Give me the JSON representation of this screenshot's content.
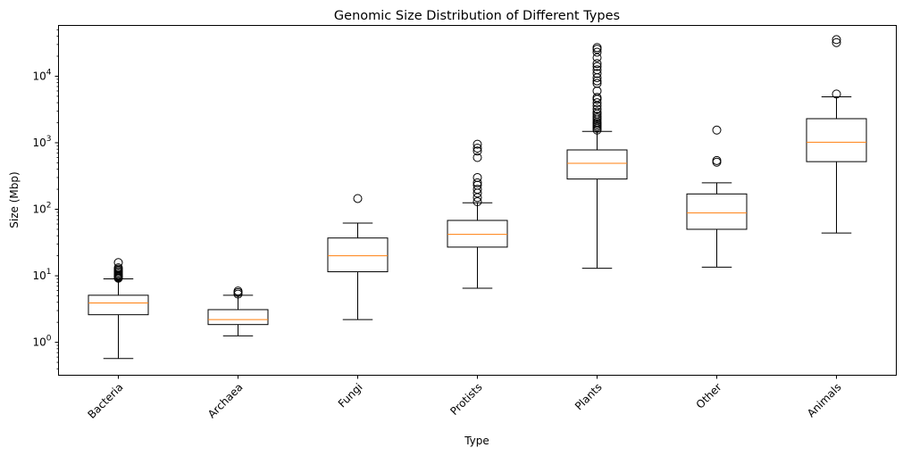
{
  "chart_data": {
    "type": "box",
    "title": "Genomic Size Distribution of Different Types",
    "xlabel": "Type",
    "ylabel": "Size (Mbp)",
    "yscale": "log",
    "ylim": [
      0.32,
      58000
    ],
    "yticks": [
      {
        "value": 1,
        "base": "10",
        "exp": "0"
      },
      {
        "value": 10,
        "base": "10",
        "exp": "1"
      },
      {
        "value": 100,
        "base": "10",
        "exp": "2"
      },
      {
        "value": 1000,
        "base": "10",
        "exp": "3"
      },
      {
        "value": 10000,
        "base": "10",
        "exp": "4"
      }
    ],
    "categories": [
      "Bacteria",
      "Archaea",
      "Fungi",
      "Protists",
      "Plants",
      "Other",
      "Animals"
    ],
    "boxes": [
      {
        "whisker_low": 0.57,
        "q1": 2.6,
        "median": 3.9,
        "q3": 5.1,
        "whisker_high": 9.0,
        "outliers": [
          9.2,
          9.5,
          9.8,
          10.1,
          10.5,
          11.0,
          11.5,
          12.0,
          12.6,
          13.2,
          15.8
        ]
      },
      {
        "whisker_low": 1.25,
        "q1": 1.85,
        "median": 2.2,
        "q3": 3.1,
        "whisker_high": 5.1,
        "outliers": [
          5.3,
          5.6,
          5.9
        ]
      },
      {
        "whisker_low": 2.2,
        "q1": 11.5,
        "median": 20,
        "q3": 37,
        "whisker_high": 62,
        "outliers": [
          145
        ]
      },
      {
        "whisker_low": 6.5,
        "q1": 27,
        "median": 42,
        "q3": 68,
        "whisker_high": 125,
        "outliers": [
          130,
          150,
          175,
          200,
          230,
          250,
          300,
          600,
          750,
          830,
          950
        ]
      },
      {
        "whisker_low": 13,
        "q1": 285,
        "median": 490,
        "q3": 780,
        "whisker_high": 1480,
        "outliers": [
          1550,
          1650,
          1750,
          1850,
          1950,
          2050,
          2200,
          2350,
          2500,
          2700,
          2900,
          3200,
          3600,
          4000,
          4500,
          4800,
          6000,
          7800,
          8500,
          9500,
          11000,
          12500,
          14000,
          15500,
          19000,
          23000,
          25500,
          27000
        ]
      },
      {
        "whisker_low": 13.5,
        "q1": 50,
        "median": 88,
        "q3": 170,
        "whisker_high": 250,
        "outliers": [
          510,
          540,
          1550
        ]
      },
      {
        "whisker_low": 44,
        "q1": 520,
        "median": 1020,
        "q3": 2300,
        "whisker_high": 4900,
        "outliers": [
          5400,
          32000,
          35500
        ]
      }
    ],
    "colors": {
      "box": "#000000",
      "median": "#ff7f0e"
    },
    "grid": false,
    "legend": "none"
  }
}
